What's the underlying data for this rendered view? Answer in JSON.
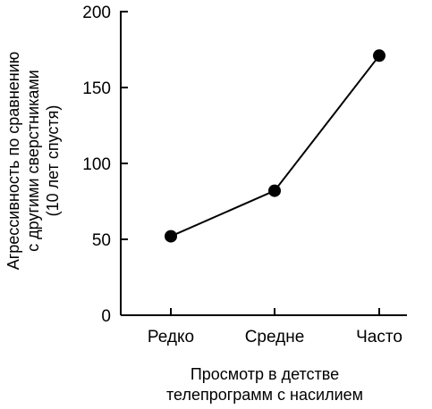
{
  "chart_data": {
    "type": "line",
    "categories": [
      "Редко",
      "Средне",
      "Часто"
    ],
    "series": [
      {
        "values": [
          52,
          82,
          171
        ]
      }
    ],
    "yticks": [
      "0",
      "50",
      "100",
      "150",
      "200"
    ],
    "ylim": [
      0,
      200
    ],
    "xlabel": [
      "Просмотр в детстве",
      "телепрограмм с насилием"
    ],
    "ylabel": [
      "Агрессивность по сравнению",
      "с другими сверстниками",
      "(10 лет спустя)"
    ],
    "grid": false,
    "legend": "none",
    "colors": {
      "line": "#000000",
      "marker": "#000000",
      "axis": "#000000"
    }
  }
}
